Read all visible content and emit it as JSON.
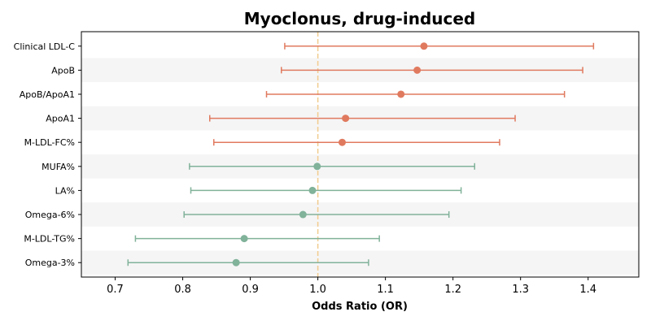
{
  "chart_data": {
    "type": "forest",
    "title": "Myoclonus, drug-induced",
    "xlabel": "Odds Ratio (OR)",
    "ylabel": "",
    "xlim": [
      0.65,
      1.475
    ],
    "xticks": [
      "0.7",
      "0.8",
      "0.9",
      "1.0",
      "1.1",
      "1.2",
      "1.3",
      "1.4"
    ],
    "reference_line": 1.0,
    "grid": false,
    "row_shading": "alternating",
    "colors": {
      "positive": "#E07A5F",
      "negative": "#81B29A",
      "reference": "#F2CC8F",
      "band": "#F5F5F5"
    },
    "rows": [
      {
        "label": "Clinical LDL-C",
        "or": 1.157,
        "lower": 0.951,
        "upper": 1.408,
        "group": "positive"
      },
      {
        "label": "ApoB",
        "or": 1.147,
        "lower": 0.946,
        "upper": 1.392,
        "group": "positive"
      },
      {
        "label": "ApoB/ApoA1",
        "or": 1.123,
        "lower": 0.924,
        "upper": 1.365,
        "group": "positive"
      },
      {
        "label": "ApoA1",
        "or": 1.041,
        "lower": 0.84,
        "upper": 1.292,
        "group": "positive"
      },
      {
        "label": "M-LDL-FC%",
        "or": 1.036,
        "lower": 0.846,
        "upper": 1.269,
        "group": "positive"
      },
      {
        "label": "MUFA%",
        "or": 0.999,
        "lower": 0.81,
        "upper": 1.232,
        "group": "negative"
      },
      {
        "label": "LA%",
        "or": 0.992,
        "lower": 0.812,
        "upper": 1.212,
        "group": "negative"
      },
      {
        "label": "Omega-6%",
        "or": 0.978,
        "lower": 0.802,
        "upper": 1.194,
        "group": "negative"
      },
      {
        "label": "M-LDL-TG%",
        "or": 0.891,
        "lower": 0.73,
        "upper": 1.091,
        "group": "negative"
      },
      {
        "label": "Omega-3%",
        "or": 0.879,
        "lower": 0.719,
        "upper": 1.075,
        "group": "negative"
      }
    ]
  }
}
